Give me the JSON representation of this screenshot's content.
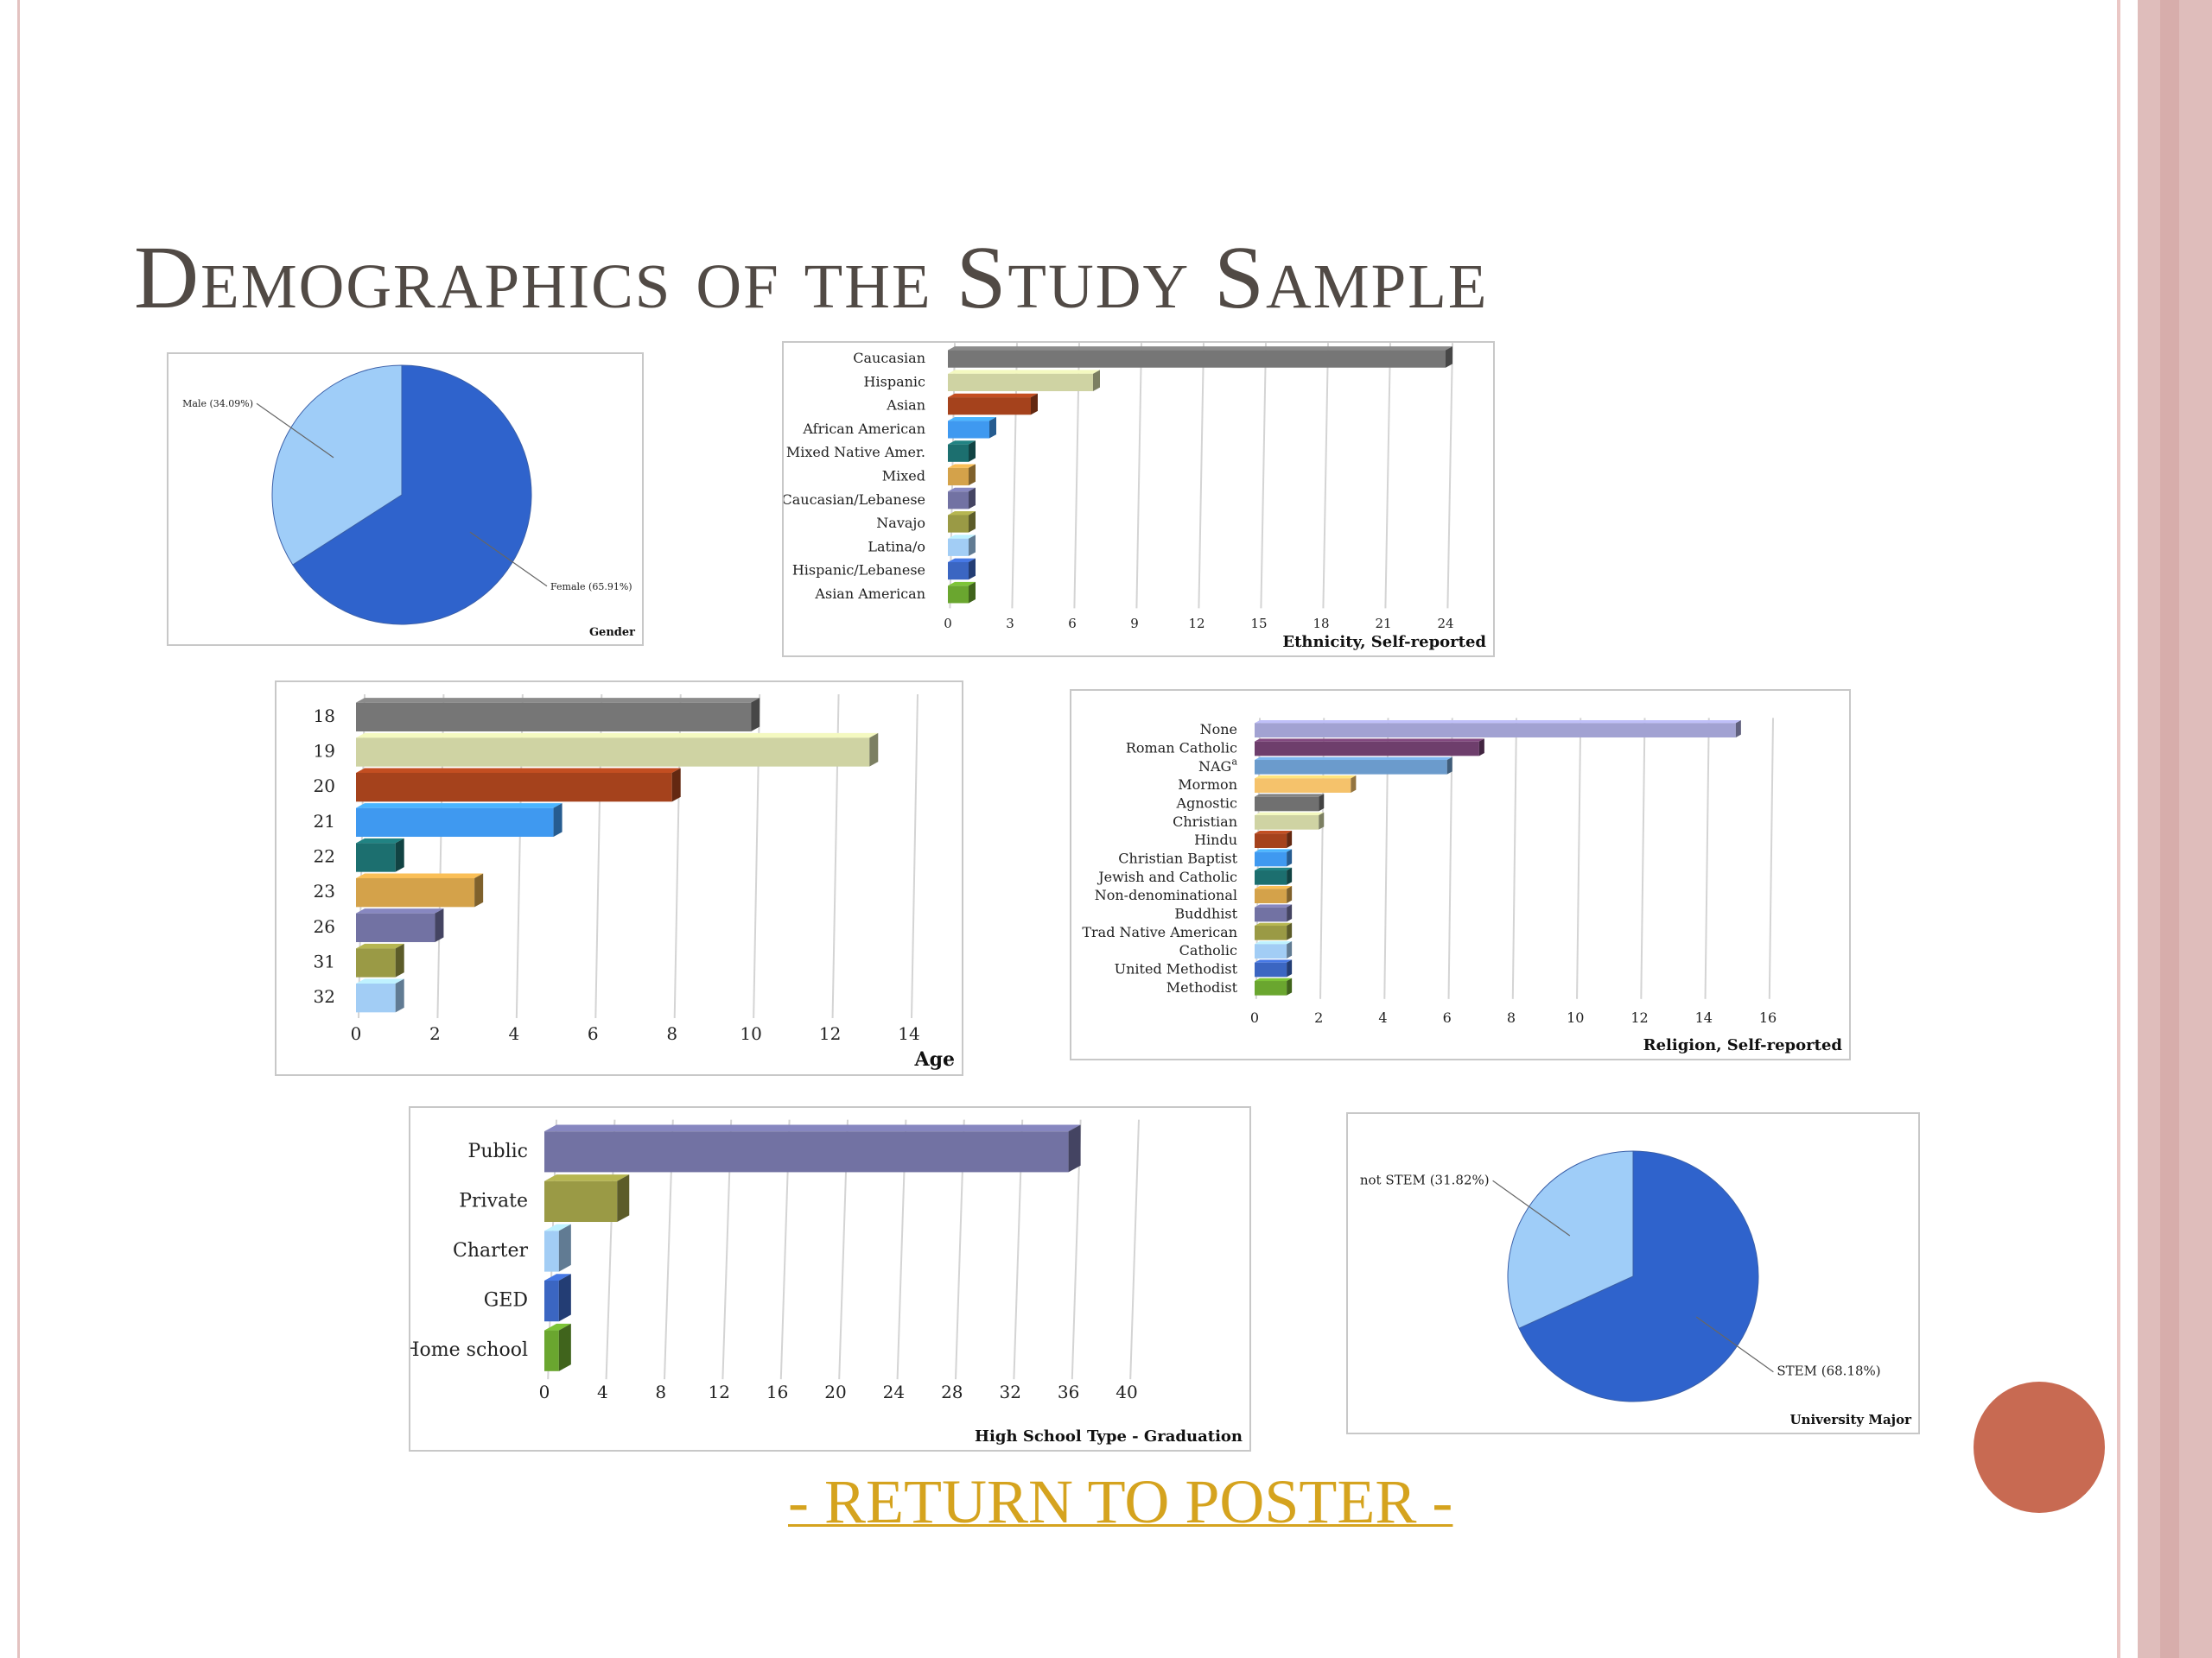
{
  "slide": {
    "title": "Demographics of the Study Sample",
    "return_link": "- RETURN TO POSTER -"
  },
  "colors": {
    "pie_major": "#2f63cc",
    "pie_minor": "#9fcdf8",
    "palette": [
      "#767676",
      "#cfd3a3",
      "#a5421c",
      "#3f99f0",
      "#1c6f6f",
      "#d4a24a",
      "#7272a3",
      "#9a9a45",
      "#a2cdf5",
      "#3b66c2",
      "#6aa62f"
    ],
    "religion_palette": [
      "#a2a2d2",
      "#6e3e6c",
      "#6b9bcc",
      "#f5c26b",
      "#707070",
      "#cfd3a3",
      "#a5421c",
      "#3f99f0",
      "#1c6f6f",
      "#d4a24a",
      "#7272a3",
      "#9a9a45",
      "#a2cdf5",
      "#3b66c2",
      "#6aa62f"
    ],
    "hs_palette": [
      "#7272a3",
      "#9a9a45",
      "#a2cdf5",
      "#3b66c2",
      "#6aa62f"
    ],
    "link": "#d5a31e",
    "accent_dot": "#c86a52"
  },
  "chart_data": [
    {
      "id": "gender",
      "type": "pie",
      "title": "Gender",
      "slices": [
        {
          "label": "Female (65.91%)",
          "value": 65.91
        },
        {
          "label": "Male (34.09%)",
          "value": 34.09
        }
      ]
    },
    {
      "id": "ethnicity",
      "type": "bar",
      "orientation": "horizontal",
      "title": "Ethnicity, Self-reported",
      "categories": [
        "Caucasian",
        "Hispanic",
        "Asian",
        "African American",
        "Mixed Native Amer.",
        "Mixed",
        "Caucasian/Lebanese",
        "Navajo",
        "Latina/o",
        "Hispanic/Lebanese",
        "Asian American"
      ],
      "values": [
        24,
        7,
        4,
        2,
        1,
        1,
        1,
        1,
        1,
        1,
        1
      ],
      "xlim": [
        0,
        24
      ],
      "xticks": [
        0,
        3,
        6,
        9,
        12,
        15,
        18,
        21,
        24
      ]
    },
    {
      "id": "age",
      "type": "bar",
      "orientation": "horizontal",
      "title": "Age",
      "categories": [
        "18",
        "19",
        "20",
        "21",
        "22",
        "23",
        "26",
        "31",
        "32"
      ],
      "values": [
        10,
        13,
        8,
        5,
        1,
        3,
        2,
        1,
        1
      ],
      "xlim": [
        0,
        14
      ],
      "xticks": [
        0,
        2,
        4,
        6,
        8,
        10,
        12,
        14
      ]
    },
    {
      "id": "religion",
      "type": "bar",
      "orientation": "horizontal",
      "title": "Religion, Self-reported",
      "categories": [
        "None",
        "Roman Catholic",
        "NAG",
        "Mormon",
        "Agnostic",
        "Christian",
        "Hindu",
        "Christian Baptist",
        "Jewish and Catholic",
        "Non-denominational",
        "Buddhist",
        "Trad Native American",
        "Catholic",
        "United Methodist",
        "Methodist"
      ],
      "values": [
        15,
        7,
        6,
        3,
        2,
        2,
        1,
        1,
        1,
        1,
        1,
        1,
        1,
        1,
        1
      ],
      "superscript_label": "NAG",
      "superscript_text": "a",
      "xlim": [
        0,
        16
      ],
      "xticks": [
        0,
        2,
        4,
        6,
        8,
        10,
        12,
        14,
        16
      ]
    },
    {
      "id": "highschool",
      "type": "bar",
      "orientation": "horizontal",
      "title": "High School Type - Graduation",
      "categories": [
        "Public",
        "Private",
        "Charter",
        "GED",
        "Home school"
      ],
      "values": [
        36,
        5,
        1,
        1,
        1
      ],
      "xlim": [
        0,
        40
      ],
      "xticks": [
        0,
        4,
        8,
        12,
        16,
        20,
        24,
        28,
        32,
        36,
        40
      ]
    },
    {
      "id": "major",
      "type": "pie",
      "title": "University Major",
      "slices": [
        {
          "label": "STEM (68.18%)",
          "value": 68.18
        },
        {
          "label": "not STEM (31.82%)",
          "value": 31.82
        }
      ]
    }
  ]
}
